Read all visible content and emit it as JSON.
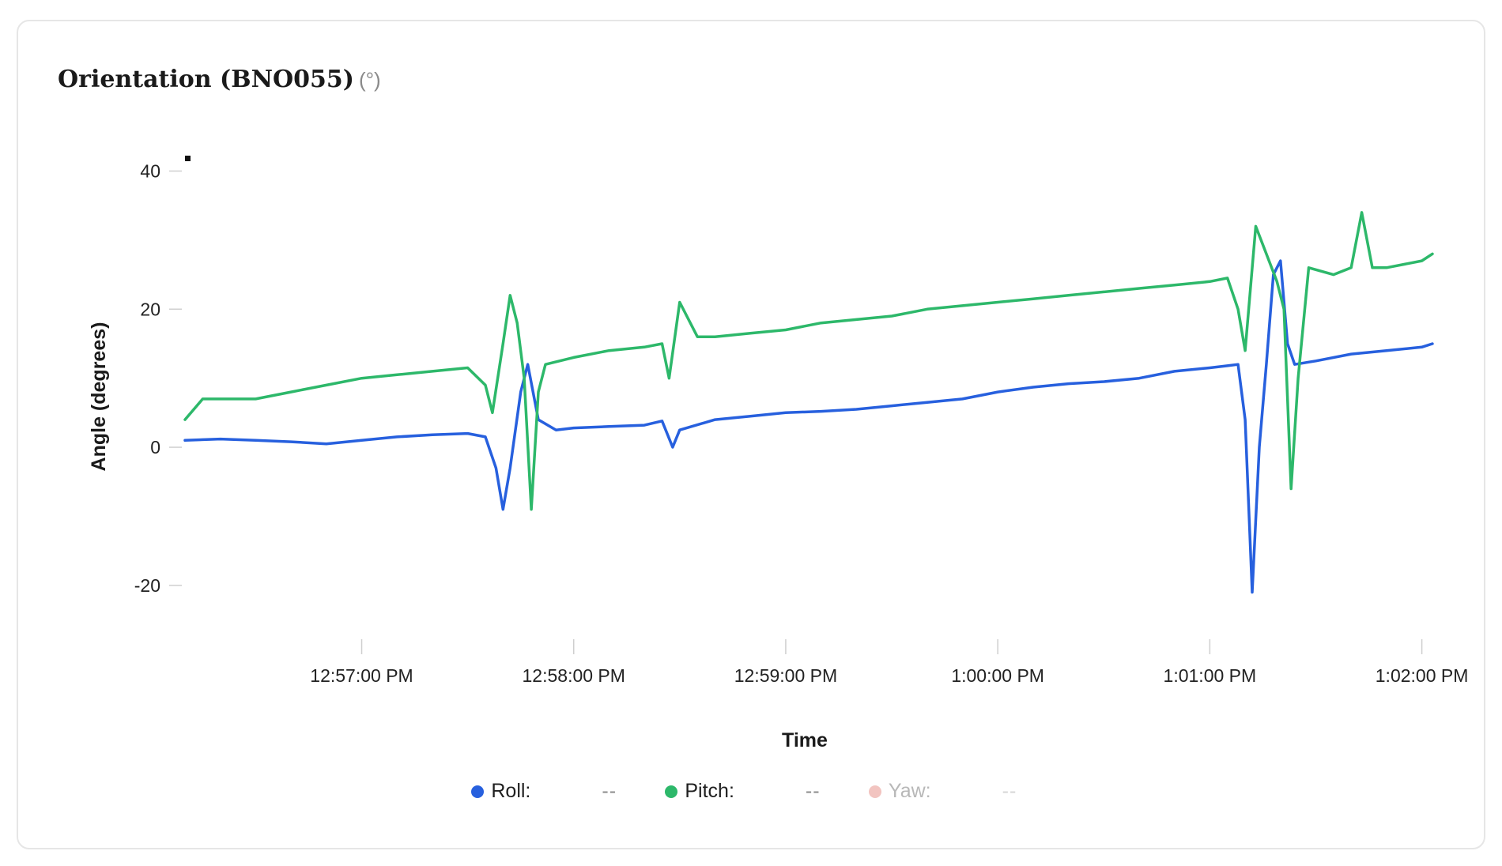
{
  "card": {
    "title": "Orientation (BNO055)",
    "unit": "(°)"
  },
  "legend": [
    {
      "name": "Roll:",
      "value": "--",
      "color": "#2760de",
      "enabled": true
    },
    {
      "name": "Pitch:",
      "value": "--",
      "color": "#2db86a",
      "enabled": true
    },
    {
      "name": "Yaw:",
      "value": "--",
      "color": "#f2c4c0",
      "enabled": false
    }
  ],
  "chart_data": {
    "type": "line",
    "xlabel": "Time",
    "ylabel": "Angle (degrees)",
    "x_tick_labels": [
      "12:57:00 PM",
      "12:58:00 PM",
      "12:59:00 PM",
      "1:00:00 PM",
      "1:01:00 PM",
      "1:02:00 PM"
    ],
    "x_ticks": [
      "12:57:00",
      "12:58:00",
      "12:59:00",
      "13:00:00",
      "13:01:00",
      "13:02:00"
    ],
    "xlim": [
      "12:56:10",
      "13:02:03"
    ],
    "y_ticks": [
      40,
      20,
      0,
      -20
    ],
    "ylim": [
      -27,
      42
    ],
    "grid": false,
    "legend_position": "bottom",
    "series": [
      {
        "name": "Roll",
        "color": "#2760de",
        "points": [
          [
            "12:56:10",
            1
          ],
          [
            "12:56:20",
            1.2
          ],
          [
            "12:56:30",
            1
          ],
          [
            "12:56:40",
            0.8
          ],
          [
            "12:56:50",
            0.5
          ],
          [
            "12:57:00",
            1
          ],
          [
            "12:57:10",
            1.5
          ],
          [
            "12:57:20",
            1.8
          ],
          [
            "12:57:30",
            2
          ],
          [
            "12:57:35",
            1.5
          ],
          [
            "12:57:38",
            -3
          ],
          [
            "12:57:40",
            -9
          ],
          [
            "12:57:42",
            -3
          ],
          [
            "12:57:45",
            8
          ],
          [
            "12:57:47",
            12
          ],
          [
            "12:57:50",
            4
          ],
          [
            "12:57:55",
            2.5
          ],
          [
            "12:58:00",
            2.8
          ],
          [
            "12:58:10",
            3
          ],
          [
            "12:58:20",
            3.2
          ],
          [
            "12:58:25",
            3.8
          ],
          [
            "12:58:28",
            0
          ],
          [
            "12:58:30",
            2.5
          ],
          [
            "12:58:40",
            4
          ],
          [
            "12:58:50",
            4.5
          ],
          [
            "12:59:00",
            5
          ],
          [
            "12:59:10",
            5.2
          ],
          [
            "12:59:20",
            5.5
          ],
          [
            "12:59:30",
            6
          ],
          [
            "12:59:40",
            6.5
          ],
          [
            "12:59:50",
            7
          ],
          [
            "13:00:00",
            8
          ],
          [
            "13:00:10",
            8.7
          ],
          [
            "13:00:20",
            9.2
          ],
          [
            "13:00:30",
            9.5
          ],
          [
            "13:00:40",
            10
          ],
          [
            "13:00:50",
            11
          ],
          [
            "13:01:00",
            11.5
          ],
          [
            "13:01:05",
            11.8
          ],
          [
            "13:01:08",
            12
          ],
          [
            "13:01:10",
            4
          ],
          [
            "13:01:12",
            -21
          ],
          [
            "13:01:14",
            0
          ],
          [
            "13:01:16",
            12
          ],
          [
            "13:01:18",
            25
          ],
          [
            "13:01:20",
            27
          ],
          [
            "13:01:22",
            15
          ],
          [
            "13:01:24",
            12
          ],
          [
            "13:01:30",
            12.5
          ],
          [
            "13:01:40",
            13.5
          ],
          [
            "13:01:50",
            14
          ],
          [
            "13:02:00",
            14.5
          ],
          [
            "13:02:03",
            15
          ]
        ]
      },
      {
        "name": "Pitch",
        "color": "#2db86a",
        "points": [
          [
            "12:56:10",
            4
          ],
          [
            "12:56:15",
            7
          ],
          [
            "12:56:30",
            7
          ],
          [
            "12:56:40",
            8
          ],
          [
            "12:56:50",
            9
          ],
          [
            "12:57:00",
            10
          ],
          [
            "12:57:10",
            10.5
          ],
          [
            "12:57:20",
            11
          ],
          [
            "12:57:30",
            11.5
          ],
          [
            "12:57:35",
            9
          ],
          [
            "12:57:37",
            5
          ],
          [
            "12:57:40",
            15
          ],
          [
            "12:57:42",
            22
          ],
          [
            "12:57:44",
            18
          ],
          [
            "12:57:46",
            10
          ],
          [
            "12:57:48",
            -9
          ],
          [
            "12:57:50",
            8
          ],
          [
            "12:57:52",
            12
          ],
          [
            "12:58:00",
            13
          ],
          [
            "12:58:10",
            14
          ],
          [
            "12:58:20",
            14.5
          ],
          [
            "12:58:25",
            15
          ],
          [
            "12:58:27",
            10
          ],
          [
            "12:58:30",
            21
          ],
          [
            "12:58:35",
            16
          ],
          [
            "12:58:40",
            16
          ],
          [
            "12:58:50",
            16.5
          ],
          [
            "12:59:00",
            17
          ],
          [
            "12:59:10",
            18
          ],
          [
            "12:59:20",
            18.5
          ],
          [
            "12:59:30",
            19
          ],
          [
            "12:59:40",
            20
          ],
          [
            "12:59:50",
            20.5
          ],
          [
            "13:00:00",
            21
          ],
          [
            "13:00:10",
            21.5
          ],
          [
            "13:00:20",
            22
          ],
          [
            "13:00:30",
            22.5
          ],
          [
            "13:00:40",
            23
          ],
          [
            "13:00:50",
            23.5
          ],
          [
            "13:01:00",
            24
          ],
          [
            "13:01:05",
            24.5
          ],
          [
            "13:01:08",
            20
          ],
          [
            "13:01:10",
            14
          ],
          [
            "13:01:13",
            32
          ],
          [
            "13:01:16",
            28
          ],
          [
            "13:01:19",
            24
          ],
          [
            "13:01:21",
            20
          ],
          [
            "13:01:23",
            -6
          ],
          [
            "13:01:25",
            10
          ],
          [
            "13:01:28",
            26
          ],
          [
            "13:01:35",
            25
          ],
          [
            "13:01:40",
            26
          ],
          [
            "13:01:43",
            34
          ],
          [
            "13:01:46",
            26
          ],
          [
            "13:01:50",
            26
          ],
          [
            "13:02:00",
            27
          ],
          [
            "13:02:03",
            28
          ]
        ]
      }
    ]
  }
}
